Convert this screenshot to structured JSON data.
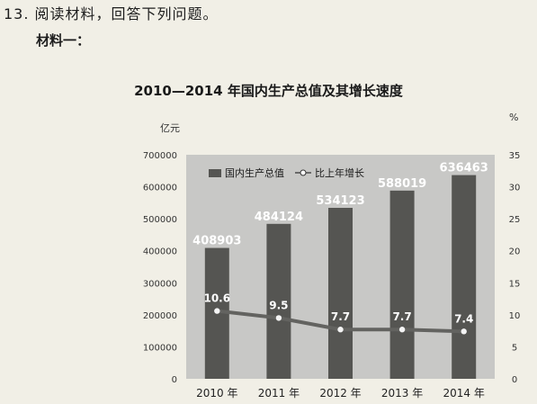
{
  "question": {
    "text": "13. 阅读材料，回答下列问题。",
    "material_label": "材料一："
  },
  "chart_data": {
    "type": "bar",
    "title": "2010—2014 年国内生产总值及其增长速度",
    "categories": [
      "2010 年",
      "2011 年",
      "2012 年",
      "2013 年",
      "2014 年"
    ],
    "series": [
      {
        "name": "国内生产总值",
        "type": "bar",
        "axis": "left",
        "values": [
          408903,
          484124,
          534123,
          588019,
          636463
        ],
        "labels": [
          "408903",
          "484124",
          "534123",
          "588019",
          "636463"
        ]
      },
      {
        "name": "比上年增长",
        "type": "line",
        "axis": "right",
        "values": [
          10.6,
          9.5,
          7.7,
          7.7,
          7.4
        ],
        "labels": [
          "10.6",
          "9.5",
          "7.7",
          "7.7",
          "7.4"
        ]
      }
    ],
    "y_left": {
      "unit": "亿元",
      "min": 0,
      "max": 700000,
      "ticks": [
        "0",
        "100000",
        "200000",
        "300000",
        "400000",
        "500000",
        "600000",
        "700000"
      ]
    },
    "y_right": {
      "unit": "%",
      "min": 0,
      "max": 35,
      "ticks": [
        "0",
        "5",
        "10",
        "15",
        "20",
        "25",
        "30",
        "35"
      ]
    },
    "legend_position": "top-left",
    "grid": false,
    "colors": {
      "bar": "#555552",
      "line": "#636360",
      "plot_bg": "#c8c8c6",
      "point": "#f4f4f4"
    }
  }
}
